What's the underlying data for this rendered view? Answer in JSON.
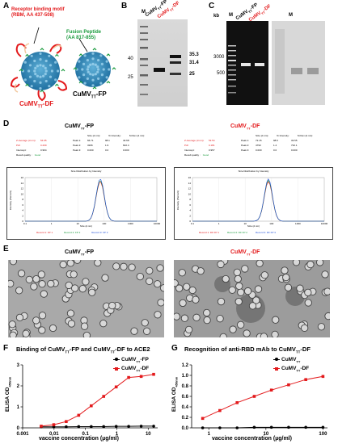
{
  "panels": {
    "A": "A",
    "B": "B",
    "C": "C",
    "D": "D",
    "E": "E",
    "F": "F",
    "G": "G"
  },
  "panelA": {
    "rbm_label": "Receptor binding motif",
    "rbm_range": "(RBM, AA 437-508)",
    "fp_label": "Fusion Peptide",
    "fp_range": "(AA 817-855)",
    "df_name": "CuMV",
    "df_sub": "TT",
    "df_suffix": "-DF",
    "fp_name": "CuMV",
    "fp_sub": "TT",
    "fp_suffix": "-FP"
  },
  "panelB": {
    "lane_m": "M",
    "lane_fp": "CuMV",
    "lane_fp_sub": "TT",
    "lane_fp_suffix": "-FP",
    "lane_df": "CuMV",
    "lane_df_sub": "TT",
    "lane_df_suffix": "-DF",
    "marker_40": "40",
    "marker_25": "25",
    "band_353": "35.3",
    "band_314": "31.4",
    "band_25": "25"
  },
  "panelC": {
    "kb": "kb",
    "lane_m1": "M",
    "lane_fp": "CuMV",
    "lane_fp_sub": "TT",
    "lane_fp_suffix": "-FP",
    "lane_df": "CuMV",
    "lane_df_sub": "TT",
    "lane_df_suffix": "-DF",
    "lane_m2": "M",
    "marker_3000": "3000",
    "marker_500": "500"
  },
  "panelD": {
    "left_title_name": "CuMV",
    "left_title_sub": "TT",
    "left_title_suffix": "-FP",
    "right_title_name": "CuMV",
    "right_title_sub": "TT",
    "right_title_suffix": "-DF",
    "left_table": {
      "headers": [
        "Size (d.nm):",
        "% Intensity:",
        "St Dev (d.nm):"
      ],
      "rows": [
        [
          "Z-Average (d.nm):",
          "54.95",
          "Peak 1:",
          "66.71",
          "98.1",
          "40.68"
        ],
        [
          "PdI:",
          "0.209",
          "Peak 2:",
          "3266",
          "1.9",
          "602.4"
        ],
        [
          "Intercept:",
          "0.964",
          "Peak 3:",
          "0.000",
          "0.0",
          "0.000"
        ]
      ],
      "quality_label": "Result quality :",
      "quality_value": "Good"
    },
    "right_table": {
      "headers": [
        "Size (d.nm):",
        "% Intensity:",
        "St Dev (d.nm):"
      ],
      "rows": [
        [
          "Z-Average (d.nm):",
          "53.54",
          "Peak 1:",
          "72.15",
          "98.6",
          "33.55"
        ],
        [
          "PdI:",
          "0.181",
          "Peak 2:",
          "4793",
          "1.4",
          "732.1"
        ],
        [
          "Intercept:",
          "0.957",
          "Peak 3:",
          "0.000",
          "0.0",
          "0.000"
        ]
      ],
      "quality_label": "Result quality :",
      "quality_value": "Good"
    },
    "plot_title": "Size Distribution by Intensity",
    "y_axis": "Intensity (Percent)",
    "x_axis": "Size (d.nm)",
    "xticks": [
      "0.1",
      "1",
      "10",
      "100",
      "1000",
      "10000"
    ],
    "yticks": [
      "0",
      "2",
      "4",
      "6",
      "8",
      "10",
      "12",
      "14",
      "16"
    ],
    "left_legend": [
      "Record 1: FP 1",
      "Record 2: FP 2",
      "Record 3: FP 3"
    ],
    "right_legend": [
      "Record 1: DF FP 1",
      "Record 2: DF FP 2",
      "Record 3: DF FP 3"
    ]
  },
  "panelE": {
    "left_title_name": "CuMV",
    "left_title_sub": "TT",
    "left_title_suffix": "-FP",
    "right_title_name": "CuMV",
    "right_title_sub": "TT",
    "right_title_suffix": "-DF"
  },
  "chart_data": [
    {
      "type": "line",
      "title": "Binding of CuMVTT-FP and CuMVTT-DF to ACE2",
      "title_parts": [
        "Binding of CuMV",
        "TT",
        "-FP and CuMV",
        "TT",
        "-DF to ACE2"
      ],
      "xlabel": "vaccine concentration (µg/ml)",
      "ylabel": "ELISA OD",
      "ylabel_sub": "450nm",
      "xscale": "log",
      "xlim": [
        0.001,
        20
      ],
      "ylim": [
        0,
        3
      ],
      "xticks": [
        "0.001",
        "0.01",
        "0.1",
        "1",
        "10"
      ],
      "yticks": [
        "0",
        "1",
        "2",
        "3"
      ],
      "x": [
        0.0039,
        0.0098,
        0.0244,
        0.061,
        0.153,
        0.381,
        0.954,
        2.38,
        5.96,
        14.9
      ],
      "series": [
        {
          "name": "CuMVTT-FP",
          "name_parts": [
            "CuMV",
            "TT",
            "-FP"
          ],
          "color": "#000000",
          "marker": "circle",
          "values": [
            0.05,
            0.05,
            0.05,
            0.06,
            0.06,
            0.06,
            0.07,
            0.07,
            0.08,
            0.08
          ]
        },
        {
          "name": "CuMVTT-DF",
          "name_parts": [
            "CuMV",
            "TT",
            "-DF"
          ],
          "color": "#e31a1c",
          "marker": "square",
          "values": [
            0.08,
            0.15,
            0.3,
            0.6,
            1.05,
            1.5,
            1.95,
            2.4,
            2.45,
            2.55
          ]
        }
      ],
      "legend": "top-right"
    },
    {
      "type": "line",
      "title": "Recognition of anti-RBD mAb to CuMVTT-DF",
      "title_parts": [
        "Recognition of anti-RBD mAb to CuMV",
        "TT",
        "-DF"
      ],
      "xlabel": "vaccine concentration (µg/ml)",
      "ylabel": "ELISA OD",
      "ylabel_sub": "450nm",
      "xscale": "log",
      "xlim": [
        0.5,
        120
      ],
      "ylim": [
        0,
        1.2
      ],
      "xticks": [
        "1",
        "10",
        "100"
      ],
      "yticks": [
        "0.0",
        "0.2",
        "0.4",
        "0.6",
        "0.8",
        "1.0",
        "1.2"
      ],
      "x": [
        0.78,
        1.56,
        3.13,
        6.25,
        12.5,
        25,
        50,
        100
      ],
      "series": [
        {
          "name": "CuMVTT",
          "name_parts": [
            "CuMV",
            "TT",
            ""
          ],
          "color": "#000000",
          "marker": "circle",
          "values": [
            0.0,
            0.0,
            0.0,
            0.01,
            0.01,
            0.01,
            0.01,
            0.01
          ]
        },
        {
          "name": "CuMVTT-DF",
          "name_parts": [
            "CuMV",
            "TT",
            "-DF"
          ],
          "color": "#e31a1c",
          "marker": "square",
          "values": [
            0.18,
            0.33,
            0.48,
            0.6,
            0.72,
            0.82,
            0.92,
            0.98
          ]
        }
      ],
      "legend": "top-left"
    }
  ]
}
